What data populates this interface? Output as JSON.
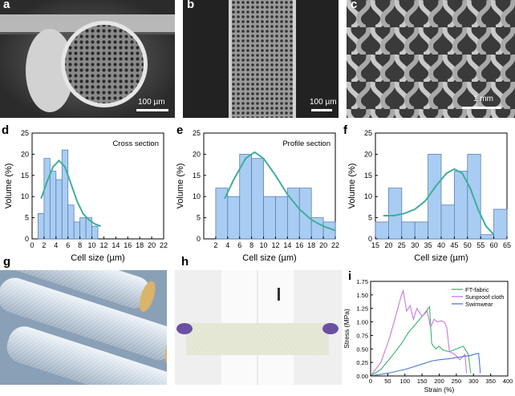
{
  "figure": {
    "panels": {
      "a": {
        "label": "a",
        "scale": "100 µm"
      },
      "b": {
        "label": "b",
        "scale": "100 µm"
      },
      "c": {
        "label": "c",
        "scale": "1 mm"
      },
      "d": {
        "label": "d"
      },
      "e": {
        "label": "e"
      },
      "f": {
        "label": "f"
      },
      "g": {
        "label": "g"
      },
      "h": {
        "label": "h"
      },
      "i": {
        "label": "i"
      }
    }
  },
  "colors": {
    "bar_fill": "#a9cdf2",
    "bar_stroke": "#5a7fb5",
    "fit_line": "#3fae9a",
    "ft": "#3cb46e",
    "sunproof": "#c87adc",
    "swimwear": "#4a78d8"
  },
  "chart_data": [
    {
      "type": "bar",
      "panel": "d",
      "annotation": "Cross section",
      "xlabel": "Cell size (µm)",
      "ylabel": "Volume (%)",
      "xlim": [
        0,
        22
      ],
      "ylim": [
        0,
        25
      ],
      "xticks": [
        0,
        2,
        4,
        6,
        8,
        10,
        12,
        14,
        16,
        18,
        20,
        22
      ],
      "yticks": [
        0,
        5,
        10,
        15,
        20,
        25
      ],
      "bin_width": 1,
      "bins": [
        [
          1.5,
          6
        ],
        [
          2.5,
          19
        ],
        [
          3.5,
          16
        ],
        [
          4.5,
          14
        ],
        [
          5.5,
          21
        ],
        [
          6.5,
          8
        ],
        [
          7.5,
          4
        ],
        [
          8.5,
          5
        ],
        [
          9.5,
          5
        ],
        [
          10.5,
          3
        ]
      ],
      "fit": [
        [
          1.5,
          9.5
        ],
        [
          2.5,
          13.5
        ],
        [
          3.5,
          17
        ],
        [
          4.5,
          18.5
        ],
        [
          5.5,
          17
        ],
        [
          6.5,
          13
        ],
        [
          7.5,
          9
        ],
        [
          8.5,
          6
        ],
        [
          9.5,
          4.5
        ],
        [
          10.5,
          3.5
        ],
        [
          11.5,
          3
        ]
      ]
    },
    {
      "type": "bar",
      "panel": "e",
      "annotation": "Profile section",
      "xlabel": "Cell size (µm)",
      "ylabel": "Volume (%)",
      "xlim": [
        0,
        22
      ],
      "ylim": [
        0,
        25
      ],
      "xticks": [
        2,
        4,
        6,
        8,
        10,
        12,
        14,
        16,
        18,
        20,
        22
      ],
      "yticks": [
        0,
        5,
        10,
        15,
        20,
        25
      ],
      "bin_width": 2,
      "bins": [
        [
          3,
          12
        ],
        [
          5,
          10
        ],
        [
          7,
          20
        ],
        [
          9,
          19
        ],
        [
          11,
          10
        ],
        [
          13,
          10
        ],
        [
          15,
          12
        ],
        [
          17,
          12
        ],
        [
          19,
          5
        ],
        [
          21,
          4
        ],
        [
          23,
          2
        ]
      ],
      "fit": [
        [
          3.5,
          9.5
        ],
        [
          5,
          14
        ],
        [
          7,
          19
        ],
        [
          8.5,
          20.5
        ],
        [
          10,
          19
        ],
        [
          12,
          15
        ],
        [
          14,
          10.5
        ],
        [
          16,
          7
        ],
        [
          18,
          4.5
        ],
        [
          20,
          3
        ],
        [
          22,
          2
        ]
      ]
    },
    {
      "type": "bar",
      "panel": "f",
      "xlabel": "Cell size (µm)",
      "ylabel": "Volume (%)",
      "xlim": [
        15,
        65
      ],
      "ylim": [
        0,
        25
      ],
      "xticks": [
        15,
        20,
        25,
        30,
        35,
        40,
        45,
        50,
        55,
        60,
        65
      ],
      "yticks": [
        0,
        5,
        10,
        15,
        20,
        25
      ],
      "bin_width": 5,
      "bins": [
        [
          17.5,
          4
        ],
        [
          22.5,
          12
        ],
        [
          27.5,
          4
        ],
        [
          32.5,
          4
        ],
        [
          37.5,
          20
        ],
        [
          42.5,
          8
        ],
        [
          47.5,
          16
        ],
        [
          52.5,
          20
        ],
        [
          57.5,
          1
        ],
        [
          62.5,
          7
        ]
      ],
      "fit": [
        [
          18,
          5.5
        ],
        [
          22,
          5.5
        ],
        [
          26,
          6
        ],
        [
          30,
          7
        ],
        [
          34,
          9
        ],
        [
          38,
          12.5
        ],
        [
          42,
          15.5
        ],
        [
          45,
          16.5
        ],
        [
          48,
          15.5
        ],
        [
          51,
          12
        ],
        [
          54,
          7
        ],
        [
          57,
          3
        ],
        [
          60,
          1
        ]
      ]
    },
    {
      "type": "line",
      "panel": "i",
      "xlabel": "Strain (%)",
      "ylabel": "Stress (MPa)",
      "xlim": [
        0,
        400
      ],
      "ylim": [
        0,
        1.75
      ],
      "xticks": [
        0,
        50,
        100,
        150,
        200,
        250,
        300,
        350,
        400
      ],
      "yticks": [
        0.0,
        0.25,
        0.5,
        0.75,
        1.0,
        1.25,
        1.5,
        1.75
      ],
      "legend_position": "top-right",
      "series": [
        {
          "name": "FT-fabric",
          "points": [
            [
              0,
              0
            ],
            [
              30,
              0.12
            ],
            [
              60,
              0.35
            ],
            [
              90,
              0.6
            ],
            [
              110,
              0.8
            ],
            [
              130,
              0.95
            ],
            [
              150,
              1.1
            ],
            [
              165,
              1.22
            ],
            [
              172,
              1.28
            ],
            [
              178,
              0.6
            ],
            [
              190,
              0.5
            ],
            [
              200,
              0.55
            ],
            [
              210,
              0.48
            ],
            [
              230,
              0.45
            ],
            [
              250,
              0.5
            ],
            [
              270,
              0.55
            ],
            [
              285,
              0.4
            ],
            [
              292,
              0.05
            ]
          ]
        },
        {
          "name": "Sunproof cloth",
          "points": [
            [
              0,
              0
            ],
            [
              30,
              0.25
            ],
            [
              55,
              0.7
            ],
            [
              75,
              1.15
            ],
            [
              90,
              1.5
            ],
            [
              95,
              1.58
            ],
            [
              105,
              1.2
            ],
            [
              115,
              1.3
            ],
            [
              125,
              1.05
            ],
            [
              135,
              1.25
            ],
            [
              150,
              1.1
            ],
            [
              165,
              1.2
            ],
            [
              175,
              0.9
            ],
            [
              185,
              1.05
            ],
            [
              195,
              1.0
            ],
            [
              205,
              1.02
            ],
            [
              215,
              1.0
            ],
            [
              222,
              0.9
            ],
            [
              230,
              0.45
            ],
            [
              245,
              0.4
            ],
            [
              260,
              0.3
            ],
            [
              275,
              0.4
            ],
            [
              280,
              0.05
            ]
          ]
        },
        {
          "name": "Swimwear",
          "points": [
            [
              0,
              0
            ],
            [
              50,
              0.05
            ],
            [
              100,
              0.12
            ],
            [
              150,
              0.22
            ],
            [
              180,
              0.28
            ],
            [
              200,
              0.3
            ],
            [
              230,
              0.32
            ],
            [
              260,
              0.35
            ],
            [
              290,
              0.38
            ],
            [
              315,
              0.42
            ],
            [
              320,
              0.05
            ]
          ]
        }
      ]
    }
  ]
}
